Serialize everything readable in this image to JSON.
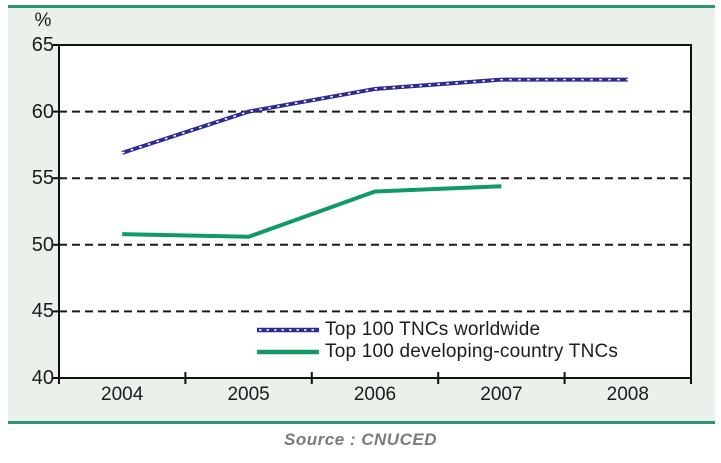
{
  "panel": {
    "background": "#e9f1ea",
    "rule_color": "#2b9475"
  },
  "source_note": "Source : CNUCED",
  "chart_data": {
    "type": "line",
    "title": "",
    "xlabel": "",
    "ylabel": "%",
    "categories": [
      "2004",
      "2005",
      "2006",
      "2007",
      "2008"
    ],
    "series": [
      {
        "name": "Top 100 TNCs worldwide",
        "color": "#2b2b91",
        "style": "dotted-texture",
        "values": [
          56.9,
          60.0,
          61.7,
          62.4,
          62.4
        ]
      },
      {
        "name": "Top 100 developing-country TNCs",
        "color": "#119a62",
        "style": "solid",
        "values": [
          50.8,
          50.6,
          54.0,
          54.4,
          null
        ]
      }
    ],
    "ylim": [
      40,
      65
    ],
    "yticks": [
      40,
      45,
      50,
      55,
      60,
      65
    ],
    "grid": "horizontal-dashed",
    "gridline_color": "#1a1a1a",
    "legend_position": "inside-bottom"
  }
}
